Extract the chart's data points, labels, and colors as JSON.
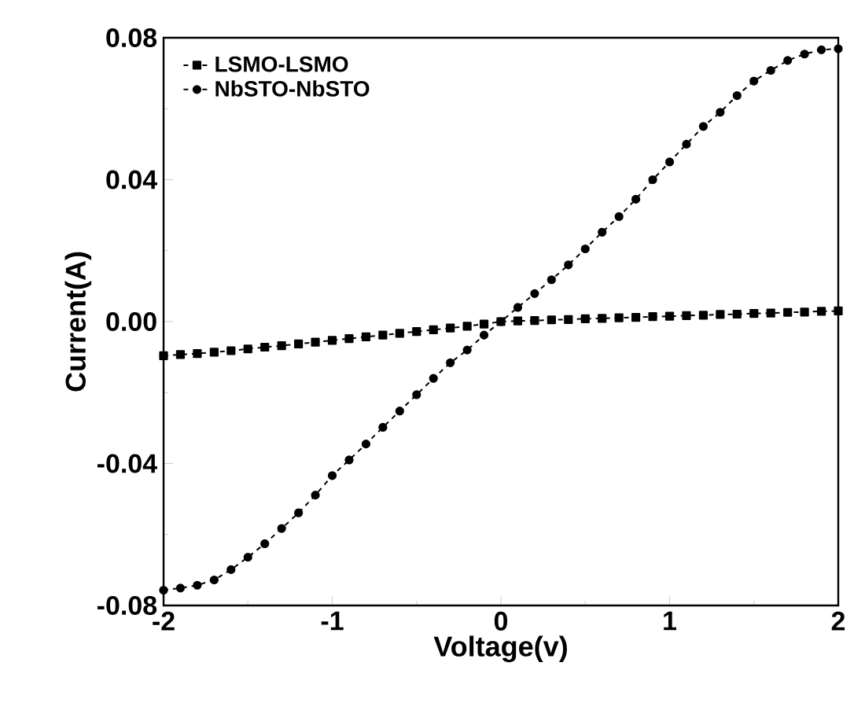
{
  "chart_data": {
    "type": "line",
    "xlabel": "Voltage(v)",
    "ylabel": "Current(A)",
    "x": [
      -2,
      -1.9,
      -1.8,
      -1.7,
      -1.6,
      -1.5,
      -1.4,
      -1.3,
      -1.2,
      -1.1,
      -1.0,
      -0.9,
      -0.8,
      -0.7,
      -0.6,
      -0.5,
      -0.4,
      -0.3,
      -0.2,
      -0.1,
      0,
      0.1,
      0.2,
      0.3,
      0.4,
      0.5,
      0.6,
      0.7,
      0.8,
      0.9,
      1.0,
      1.1,
      1.2,
      1.3,
      1.4,
      1.5,
      1.6,
      1.7,
      1.8,
      1.9,
      2.0
    ],
    "series": [
      {
        "name": "LSMO-LSMO",
        "color": "#000000",
        "marker": "square",
        "values": [
          -0.0096,
          -0.0093,
          -0.009,
          -0.0086,
          -0.0082,
          -0.0077,
          -0.0072,
          -0.0068,
          -0.0063,
          -0.0058,
          -0.0053,
          -0.0048,
          -0.0043,
          -0.0038,
          -0.0033,
          -0.0028,
          -0.0023,
          -0.0018,
          -0.0013,
          -0.0007,
          0,
          0.0002,
          0.0003,
          0.0005,
          0.0006,
          0.0008,
          0.0009,
          0.0011,
          0.0012,
          0.0014,
          0.0015,
          0.0017,
          0.0018,
          0.002,
          0.0021,
          0.0023,
          0.0024,
          0.0026,
          0.0027,
          0.0029,
          0.003
        ]
      },
      {
        "name": "NbSTO-NbSTO",
        "color": "#000000",
        "marker": "circle",
        "values": [
          -0.0757,
          -0.0751,
          -0.0743,
          -0.0728,
          -0.0699,
          -0.0664,
          -0.0626,
          -0.0583,
          -0.0539,
          -0.0489,
          -0.0434,
          -0.039,
          -0.0345,
          -0.0298,
          -0.0252,
          -0.0206,
          -0.016,
          -0.0116,
          -0.008,
          -0.0038,
          0,
          0.004,
          0.0079,
          0.0118,
          0.016,
          0.0205,
          0.0252,
          0.0296,
          0.0345,
          0.04,
          0.045,
          0.05,
          0.055,
          0.059,
          0.0637,
          0.0678,
          0.0708,
          0.0736,
          0.0754,
          0.0766,
          0.0769
        ]
      }
    ],
    "xlim": [
      -2,
      2
    ],
    "xticks": [
      -2,
      -1,
      0,
      1,
      2
    ],
    "ylim": [
      -0.08,
      0.08
    ],
    "yticks": [
      -0.08,
      -0.04,
      {
        "value": 0,
        "label": "0.00"
      },
      0.04,
      0.08
    ],
    "legend": "top left",
    "line_style": "dashed",
    "grid": false
  }
}
